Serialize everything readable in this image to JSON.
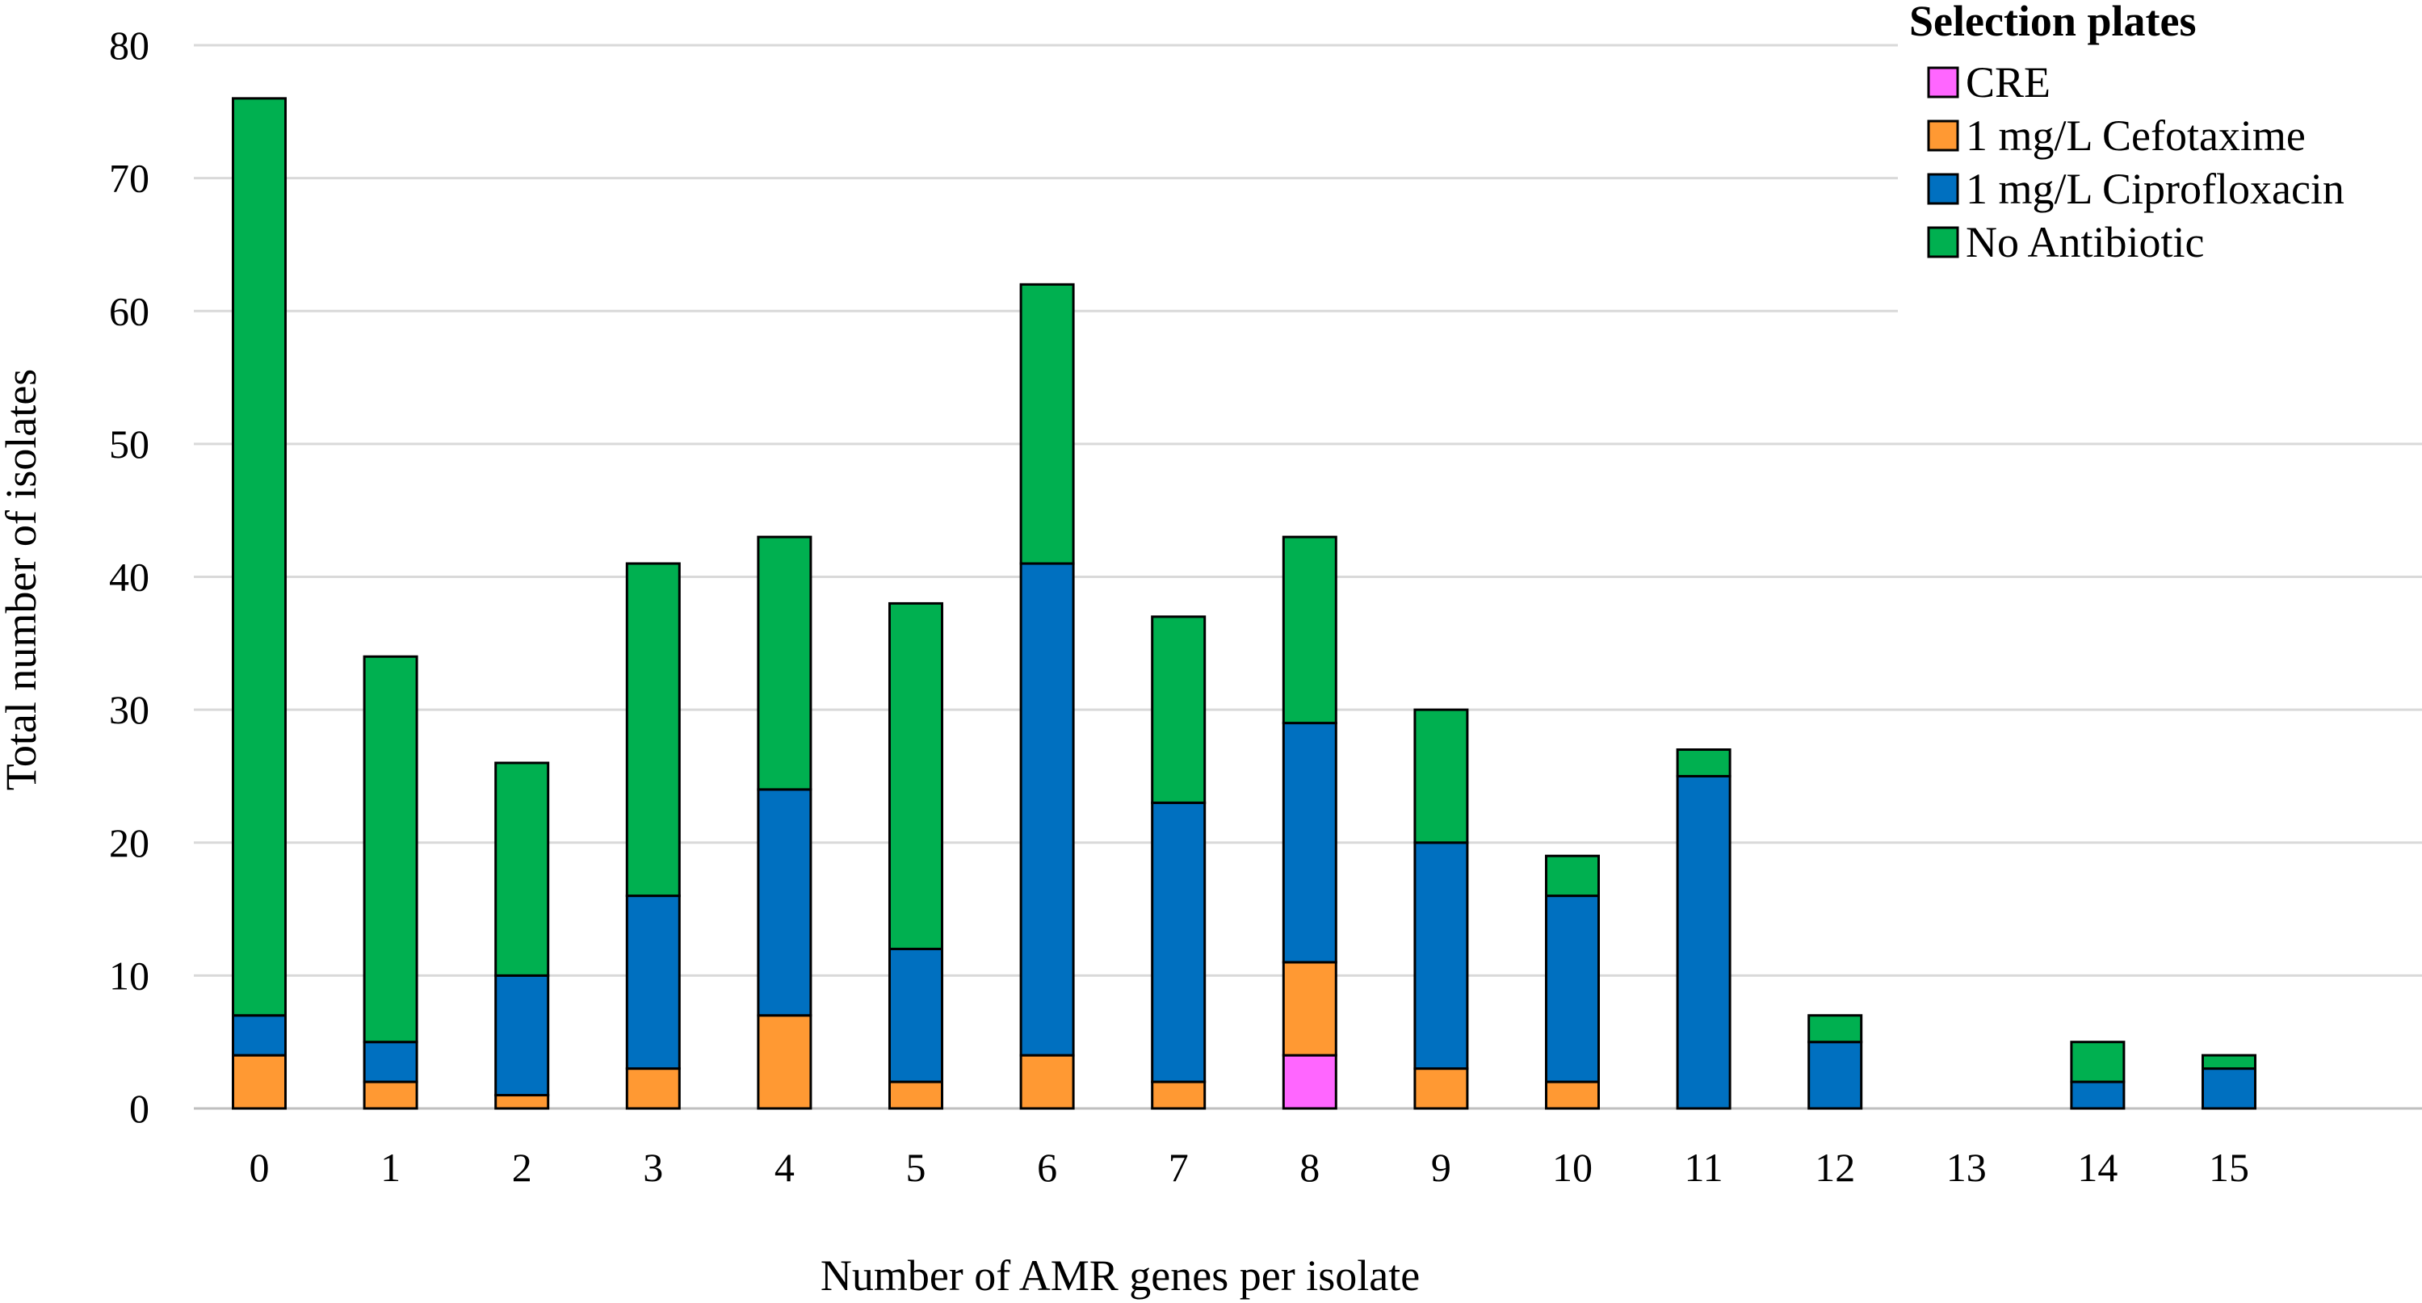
{
  "chart_data": {
    "type": "bar",
    "stacked": true,
    "categories": [
      "0",
      "1",
      "2",
      "3",
      "4",
      "5",
      "6",
      "7",
      "8",
      "9",
      "10",
      "11",
      "12",
      "13",
      "14",
      "15"
    ],
    "series": [
      {
        "name": "CRE",
        "color": "#ff66ff",
        "values": [
          0,
          0,
          0,
          0,
          0,
          0,
          0,
          0,
          4,
          0,
          0,
          0,
          0,
          0,
          0,
          0
        ]
      },
      {
        "name": "1 mg/L Cefotaxime",
        "color": "#ff9933",
        "values": [
          4,
          2,
          1,
          3,
          7,
          2,
          4,
          2,
          7,
          3,
          2,
          0,
          0,
          0,
          0,
          0
        ]
      },
      {
        "name": "1 mg/L Ciprofloxacin",
        "color": "#0070c0",
        "values": [
          3,
          3,
          9,
          13,
          17,
          10,
          37,
          21,
          18,
          17,
          14,
          25,
          5,
          0,
          2,
          3
        ]
      },
      {
        "name": "No Antibiotic",
        "color": "#00b050",
        "values": [
          69,
          29,
          16,
          25,
          19,
          26,
          21,
          14,
          14,
          10,
          3,
          2,
          2,
          0,
          3,
          1
        ]
      }
    ],
    "xlabel": "Number of AMR genes per isolate",
    "ylabel": "Total number of isolates",
    "ylim": [
      0,
      80
    ],
    "yticks": [
      0,
      10,
      20,
      30,
      40,
      50,
      60,
      70,
      80
    ],
    "grid": true,
    "legend": {
      "title": "Selection plates",
      "position": "top-right"
    }
  }
}
